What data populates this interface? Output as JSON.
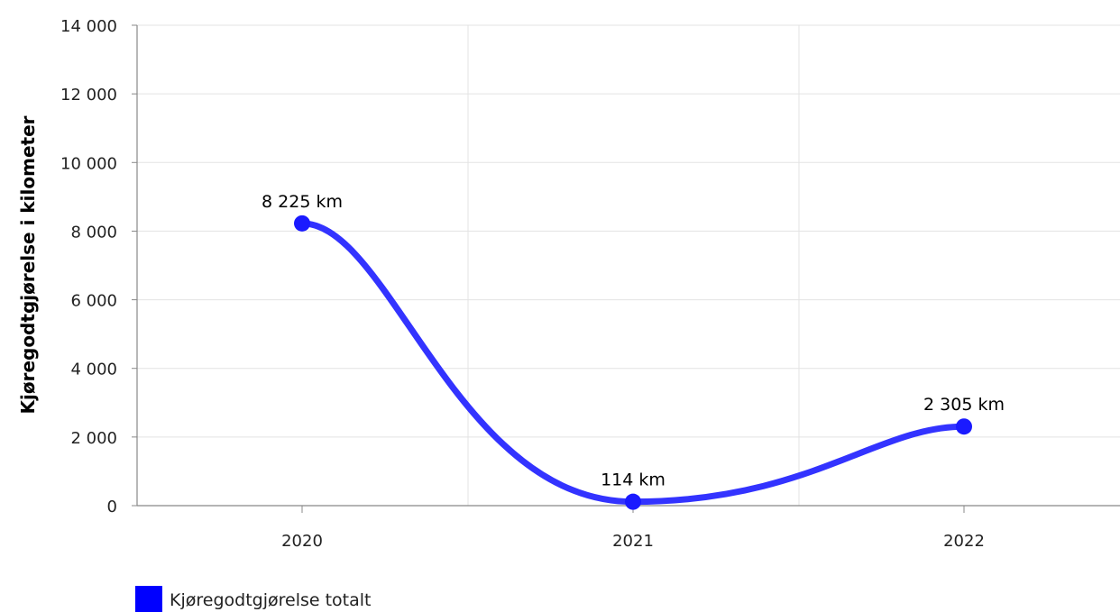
{
  "chart_data": {
    "type": "line",
    "title": "",
    "xlabel": "",
    "ylabel": "Kjøregodtgjørelse i kilometer",
    "categories": [
      "2020",
      "2021",
      "2022"
    ],
    "series": [
      {
        "name": "Kjøregodtgjørelse totalt",
        "values": [
          8225,
          114,
          2305
        ],
        "data_labels": [
          "8 225 km",
          "114 km",
          "2 305 km"
        ],
        "color": "#3333ff"
      }
    ],
    "ylim": [
      0,
      14000
    ],
    "yticks": [
      0,
      2000,
      4000,
      6000,
      8000,
      10000,
      12000,
      14000
    ],
    "ytick_labels": [
      "0",
      "2 000",
      "4 000",
      "6 000",
      "8 000",
      "10 000",
      "12 000",
      "14 000"
    ],
    "grid": true,
    "smooth": true,
    "legend_position": "bottom-left",
    "colors": {
      "line": "#3333ff",
      "marker": "#1a1aff",
      "legend_swatch": "#0000ff",
      "grid": "#e3e3e3",
      "axis": "#888888"
    }
  }
}
